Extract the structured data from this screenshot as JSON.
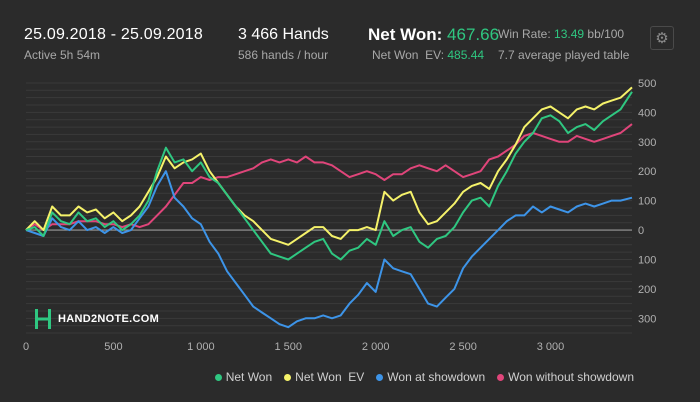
{
  "header": {
    "date_range": "25.09.2018 - 25.09.2018",
    "active_time": "Active 5h 54m",
    "hands_total": "3 466 Hands",
    "hands_per_hour": "586 hands / hour",
    "net_won_label": "Net Won:",
    "net_won_value": "467.66",
    "net_won_ev_label": "Net Won  EV:",
    "net_won_ev_value": "485.44",
    "win_rate_label": "Win Rate:",
    "win_rate_value": "13.49",
    "win_rate_unit": "bb/100",
    "avg_tables": "7.7 average played table",
    "settings_icon": "gear-icon"
  },
  "watermark": {
    "text": "HAND2NOTE.COM",
    "icon": "hand2note-logo-icon"
  },
  "colors": {
    "background": "#2b2b2b",
    "net_won": "#2fc781",
    "net_won_ev": "#f5f26a",
    "won_at_showdown": "#3d94e8",
    "won_without_showdown": "#e0457a",
    "grid": "#3a3a3a",
    "zero_line": "#9a9a9a"
  },
  "chart_data": {
    "type": "line",
    "xlim": [
      0,
      3466
    ],
    "ylim": [
      -360,
      510
    ],
    "x_ticks": [
      0,
      500,
      1000,
      1500,
      2000,
      2500,
      3000
    ],
    "x_tick_labels": [
      "0",
      "500",
      "1 000",
      "1 500",
      "2 000",
      "2 500",
      "3 000"
    ],
    "y_ticks": [
      500,
      400,
      300,
      200,
      100,
      0,
      -100,
      -200,
      -300
    ],
    "y_tick_labels": [
      "500",
      "400",
      "300",
      "200",
      "100",
      "0",
      "100",
      "200",
      "300"
    ],
    "grid": true,
    "legend_position": "bottom-right",
    "x": [
      0,
      50,
      100,
      150,
      200,
      250,
      300,
      350,
      400,
      450,
      500,
      550,
      600,
      650,
      700,
      750,
      800,
      850,
      900,
      950,
      1000,
      1050,
      1100,
      1150,
      1200,
      1250,
      1300,
      1350,
      1400,
      1450,
      1500,
      1550,
      1600,
      1650,
      1700,
      1750,
      1800,
      1850,
      1900,
      1950,
      2000,
      2050,
      2100,
      2150,
      2200,
      2250,
      2300,
      2350,
      2400,
      2450,
      2500,
      2550,
      2600,
      2650,
      2700,
      2750,
      2800,
      2850,
      2900,
      2950,
      3000,
      3050,
      3100,
      3150,
      3200,
      3250,
      3300,
      3350,
      3400,
      3466
    ],
    "series": [
      {
        "name": "Net Won",
        "values": [
          0,
          10,
          -20,
          60,
          30,
          20,
          60,
          30,
          40,
          10,
          30,
          0,
          20,
          50,
          100,
          200,
          280,
          230,
          240,
          200,
          230,
          180,
          160,
          120,
          80,
          40,
          0,
          -40,
          -80,
          -90,
          -100,
          -80,
          -60,
          -40,
          -30,
          -80,
          -100,
          -70,
          -60,
          -30,
          -50,
          30,
          -20,
          0,
          10,
          -40,
          -60,
          -30,
          -20,
          10,
          60,
          100,
          110,
          80,
          150,
          200,
          260,
          300,
          330,
          380,
          390,
          370,
          330,
          350,
          360,
          340,
          370,
          390,
          410,
          470
        ]
      },
      {
        "name": "Net Won  EV",
        "values": [
          0,
          30,
          0,
          80,
          50,
          50,
          80,
          60,
          70,
          40,
          60,
          30,
          50,
          80,
          130,
          180,
          250,
          210,
          230,
          240,
          260,
          200,
          160,
          120,
          80,
          50,
          30,
          0,
          -30,
          -40,
          -50,
          -30,
          -10,
          10,
          10,
          -20,
          -30,
          0,
          0,
          10,
          0,
          130,
          100,
          120,
          130,
          60,
          20,
          30,
          60,
          90,
          130,
          150,
          160,
          140,
          200,
          240,
          290,
          350,
          380,
          410,
          420,
          400,
          380,
          410,
          420,
          410,
          430,
          440,
          450,
          485
        ]
      },
      {
        "name": "Won at showdown",
        "values": [
          0,
          -10,
          -20,
          40,
          10,
          0,
          30,
          0,
          10,
          -10,
          10,
          -10,
          0,
          40,
          80,
          150,
          200,
          110,
          80,
          40,
          20,
          -40,
          -80,
          -140,
          -180,
          -220,
          -260,
          -280,
          -300,
          -320,
          -330,
          -310,
          -300,
          -300,
          -290,
          -300,
          -290,
          -250,
          -220,
          -180,
          -210,
          -100,
          -130,
          -140,
          -150,
          -200,
          -250,
          -260,
          -230,
          -200,
          -130,
          -90,
          -60,
          -30,
          0,
          30,
          50,
          50,
          80,
          60,
          80,
          70,
          60,
          80,
          90,
          80,
          90,
          100,
          100,
          110
        ]
      },
      {
        "name": "Won without showdown",
        "values": [
          0,
          20,
          0,
          20,
          20,
          20,
          30,
          30,
          30,
          20,
          20,
          10,
          20,
          10,
          20,
          50,
          80,
          120,
          160,
          160,
          180,
          170,
          180,
          180,
          190,
          200,
          210,
          230,
          240,
          230,
          240,
          230,
          250,
          230,
          230,
          220,
          200,
          180,
          190,
          200,
          190,
          170,
          190,
          190,
          210,
          220,
          210,
          200,
          220,
          200,
          180,
          190,
          200,
          240,
          250,
          270,
          290,
          320,
          330,
          320,
          310,
          300,
          300,
          320,
          310,
          300,
          310,
          320,
          330,
          360
        ]
      }
    ]
  },
  "legend": {
    "items": [
      {
        "label": "Net Won",
        "color": "#2fc781"
      },
      {
        "label": "Net Won  EV",
        "color": "#f5f26a"
      },
      {
        "label": "Won at showdown",
        "color": "#3d94e8"
      },
      {
        "label": "Won without showdown",
        "color": "#e0457a"
      }
    ]
  }
}
